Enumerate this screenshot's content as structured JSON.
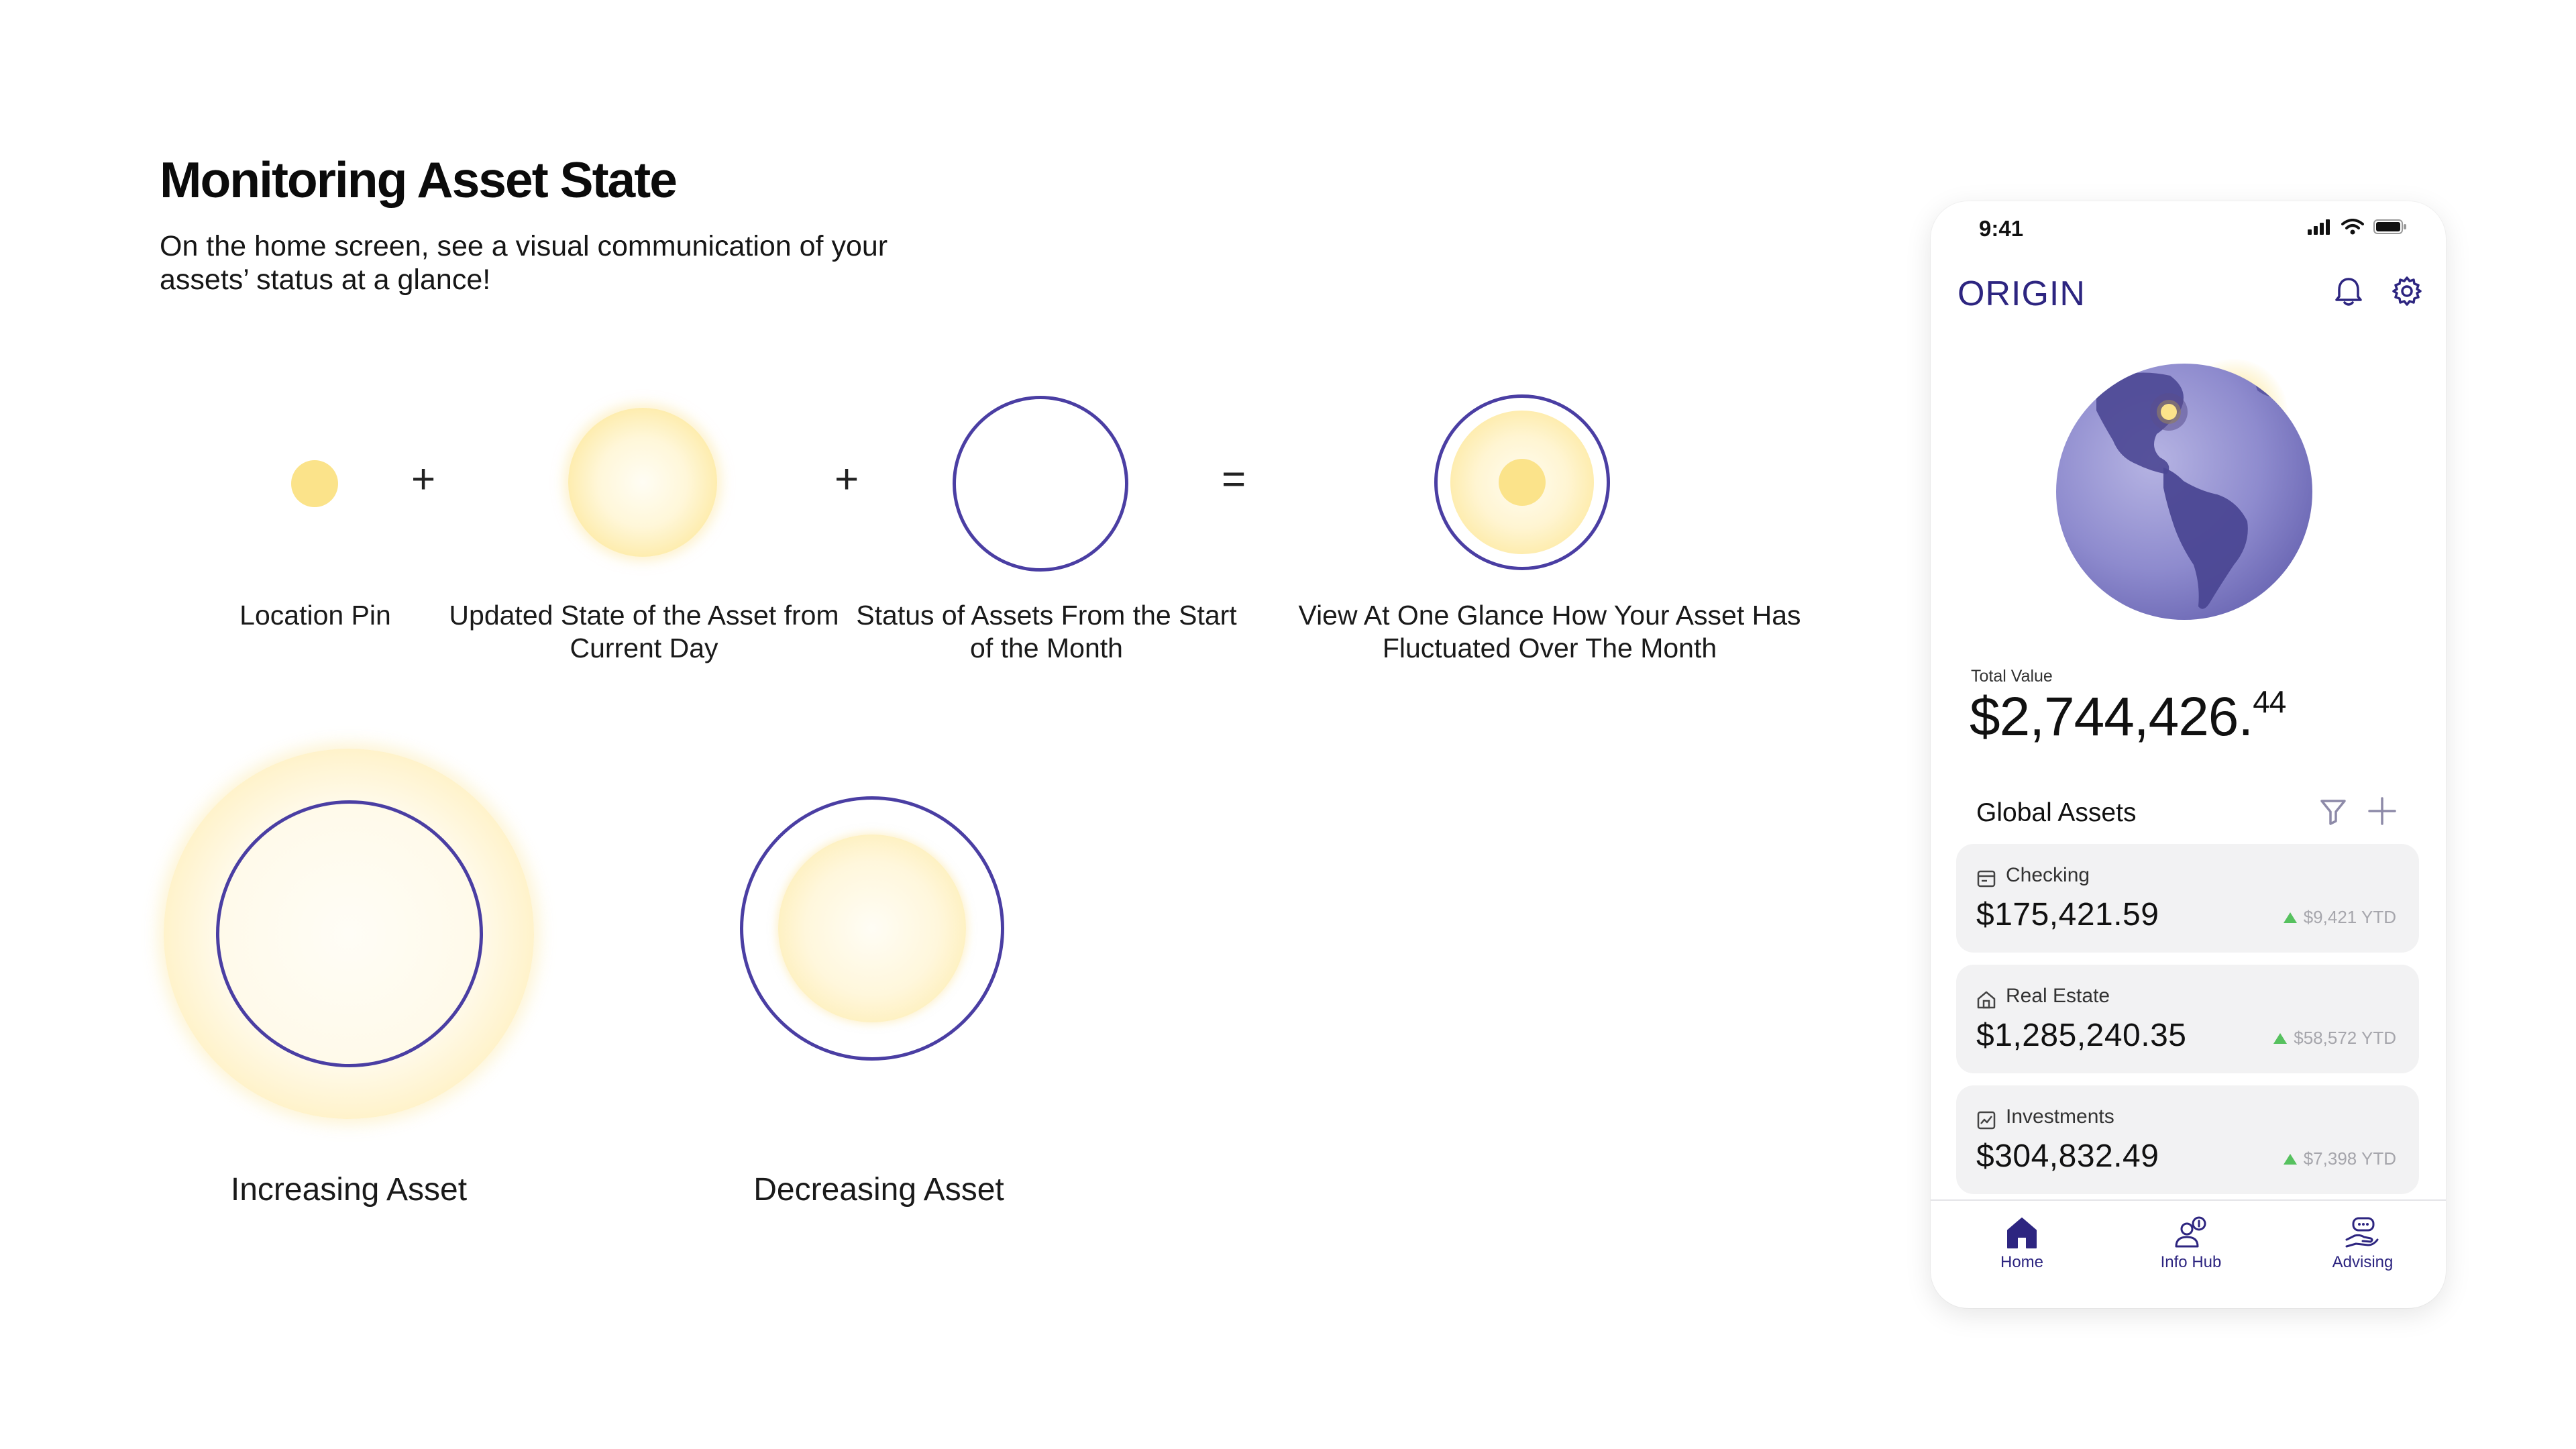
{
  "header": {
    "title": "Monitoring Asset State",
    "subtitle": "On the home screen, see a visual communication of your assets’ status at a glance!"
  },
  "legend": {
    "operators": [
      "+",
      "+",
      "="
    ],
    "items": [
      {
        "label": "Location Pin"
      },
      {
        "label": "Updated State of the Asset from Current Day"
      },
      {
        "label": "Status of Assets From the Start of the Month"
      },
      {
        "label": "View At One Glance How Your Asset Has Fluctuated Over The Month"
      }
    ]
  },
  "examples": {
    "increasing": "Increasing Asset",
    "decreasing": "Decreasing Asset"
  },
  "phone": {
    "status_time": "9:41",
    "brand": "ORIGIN",
    "total_label": "Total Value",
    "total_value_main": "$2,744,426.",
    "total_value_cents": "44",
    "section_title": "Global Assets",
    "cards": [
      {
        "label": "Checking",
        "amount": "$175,421.59",
        "ytd": "$9,421 YTD",
        "icon": "wallet-icon",
        "trend": "up"
      },
      {
        "label": "Real Estate",
        "amount": "$1,285,240.35",
        "ytd": "$58,572 YTD",
        "icon": "house-icon",
        "trend": "up"
      },
      {
        "label": "Investments",
        "amount": "$304,832.49",
        "ytd": "$7,398 YTD",
        "icon": "chart-icon",
        "trend": "up"
      }
    ],
    "nav": [
      {
        "label": "Home",
        "icon": "home-icon",
        "active": true
      },
      {
        "label": "Info Hub",
        "icon": "info-hub-icon",
        "active": false
      },
      {
        "label": "Advising",
        "icon": "advising-icon",
        "active": false
      }
    ]
  },
  "colors": {
    "accent": "#4a3ea3",
    "brand": "#2d2580",
    "pin": "#fbe38a",
    "trend_up": "#56c15e"
  }
}
